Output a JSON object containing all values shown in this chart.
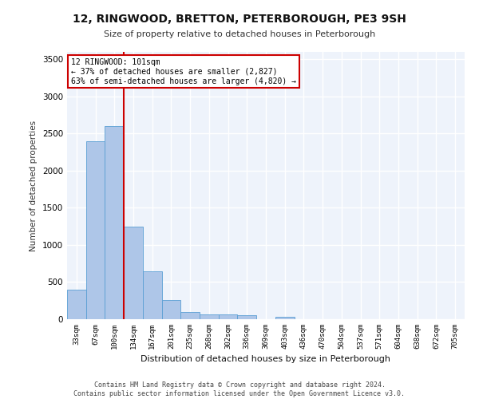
{
  "title": "12, RINGWOOD, BRETTON, PETERBOROUGH, PE3 9SH",
  "subtitle": "Size of property relative to detached houses in Peterborough",
  "xlabel": "Distribution of detached houses by size in Peterborough",
  "ylabel": "Number of detached properties",
  "categories": [
    "33sqm",
    "67sqm",
    "100sqm",
    "134sqm",
    "167sqm",
    "201sqm",
    "235sqm",
    "268sqm",
    "302sqm",
    "336sqm",
    "369sqm",
    "403sqm",
    "436sqm",
    "470sqm",
    "504sqm",
    "537sqm",
    "571sqm",
    "604sqm",
    "638sqm",
    "672sqm",
    "705sqm"
  ],
  "values": [
    400,
    2400,
    2600,
    1250,
    640,
    260,
    100,
    60,
    60,
    50,
    0,
    35,
    0,
    0,
    0,
    0,
    0,
    0,
    0,
    0,
    0
  ],
  "bar_color": "#aec6e8",
  "bar_edge_color": "#5a9fd4",
  "background_color": "#eef3fb",
  "grid_color": "#ffffff",
  "annotation_text": "12 RINGWOOD: 101sqm\n← 37% of detached houses are smaller (2,827)\n63% of semi-detached houses are larger (4,820) →",
  "annotation_box_color": "#ffffff",
  "annotation_box_edge": "#cc0000",
  "vline_index": 2,
  "vline_color": "#cc0000",
  "ylim": [
    0,
    3600
  ],
  "yticks": [
    0,
    500,
    1000,
    1500,
    2000,
    2500,
    3000,
    3500
  ],
  "footer_line1": "Contains HM Land Registry data © Crown copyright and database right 2024.",
  "footer_line2": "Contains public sector information licensed under the Open Government Licence v3.0."
}
